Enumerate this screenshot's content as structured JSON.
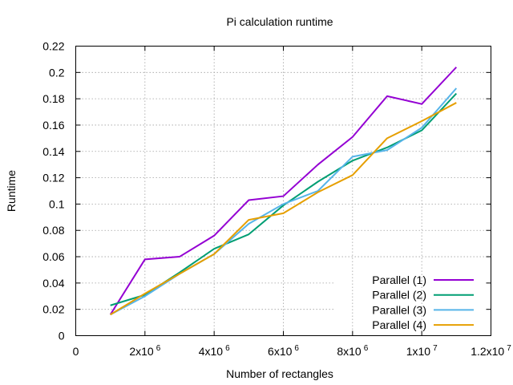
{
  "chart_data": {
    "type": "line",
    "title": "Pi calculation runtime",
    "xlabel": "Number of rectangles",
    "ylabel": "Runtime",
    "xlim": [
      0,
      12000000
    ],
    "ylim": [
      0,
      0.22
    ],
    "grid": true,
    "legend_position": "bottom-right",
    "x_ticks": [
      {
        "value": 0,
        "mantissa": "0",
        "exponent": ""
      },
      {
        "value": 2000000,
        "mantissa": "2x10",
        "exponent": "6"
      },
      {
        "value": 4000000,
        "mantissa": "4x10",
        "exponent": "6"
      },
      {
        "value": 6000000,
        "mantissa": "6x10",
        "exponent": "6"
      },
      {
        "value": 8000000,
        "mantissa": "8x10",
        "exponent": "6"
      },
      {
        "value": 10000000,
        "mantissa": "1x10",
        "exponent": "7"
      },
      {
        "value": 12000000,
        "mantissa": "1.2x10",
        "exponent": "7"
      }
    ],
    "y_ticks": [
      {
        "value": 0,
        "label": "0"
      },
      {
        "value": 0.02,
        "label": "0.02"
      },
      {
        "value": 0.04,
        "label": "0.04"
      },
      {
        "value": 0.06,
        "label": "0.06"
      },
      {
        "value": 0.08,
        "label": "0.08"
      },
      {
        "value": 0.1,
        "label": "0.1"
      },
      {
        "value": 0.12,
        "label": "0.12"
      },
      {
        "value": 0.14,
        "label": "0.14"
      },
      {
        "value": 0.16,
        "label": "0.16"
      },
      {
        "value": 0.18,
        "label": "0.18"
      },
      {
        "value": 0.2,
        "label": "0.2"
      },
      {
        "value": 0.22,
        "label": "0.22"
      }
    ],
    "x": [
      1000000,
      2000000,
      3000000,
      4000000,
      5000000,
      6000000,
      7000000,
      8000000,
      9000000,
      10000000,
      11000000
    ],
    "series": [
      {
        "name": "Parallel (1)",
        "color": "#9400d3",
        "values": [
          0.016,
          0.058,
          0.06,
          0.076,
          0.103,
          0.106,
          0.13,
          0.151,
          0.182,
          0.176,
          0.204
        ]
      },
      {
        "name": "Parallel (2)",
        "color": "#009e73",
        "values": [
          0.023,
          0.031,
          0.048,
          0.066,
          0.077,
          0.099,
          0.117,
          0.133,
          0.143,
          0.156,
          0.184
        ]
      },
      {
        "name": "Parallel (3)",
        "color": "#56b4e9",
        "values": [
          0.016,
          0.03,
          0.047,
          0.062,
          0.085,
          0.1,
          0.11,
          0.136,
          0.141,
          0.158,
          0.188
        ]
      },
      {
        "name": "Parallel (4)",
        "color": "#e69f00",
        "values": [
          0.016,
          0.032,
          0.047,
          0.062,
          0.088,
          0.093,
          0.109,
          0.122,
          0.15,
          0.163,
          0.177
        ]
      }
    ]
  }
}
